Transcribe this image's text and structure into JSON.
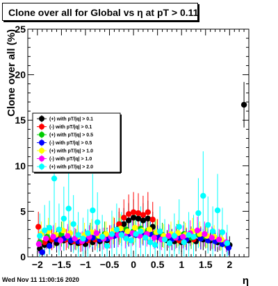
{
  "header": {
    "title": "Clone  over all for Global vs   η at pT > 0.11"
  },
  "footer": {
    "timestamp": "Wed Nov 11 11:00:16 2020"
  },
  "chart_data": {
    "type": "scatter",
    "title": "Clone  over all for Global vs   η at pT > 0.11",
    "xlabel": "η",
    "ylabel": "Clone  over all (%)",
    "xlim": [
      -2.2,
      2.4
    ],
    "ylim": [
      0,
      25
    ],
    "x_ticks": [
      -2,
      -1.5,
      -1,
      -0.5,
      0,
      0.5,
      1,
      1.5,
      2
    ],
    "x_tick_labels": [
      "−2",
      "−1.5",
      "−1",
      "−0.5",
      "0",
      "0.5",
      "1",
      "1.5",
      "2"
    ],
    "y_ticks": [
      0,
      5,
      10,
      15,
      20,
      25
    ],
    "grid": false,
    "legend_position": "center-left",
    "series": [
      {
        "name": "(+) with pT/|q| > 0.1",
        "color": "#000000",
        "points": [
          [
            -1.95,
            0.9
          ],
          [
            -1.85,
            1.3
          ],
          [
            -1.75,
            1.6
          ],
          [
            -1.6,
            1.5
          ],
          [
            -1.45,
            1.8
          ],
          [
            -1.3,
            1.6
          ],
          [
            -1.15,
            1.5
          ],
          [
            -1.0,
            1.4
          ],
          [
            -0.85,
            1.6
          ],
          [
            -0.7,
            1.7
          ],
          [
            -0.55,
            1.8
          ],
          [
            -0.4,
            2.3
          ],
          [
            -0.3,
            3.3
          ],
          [
            -0.2,
            3.6
          ],
          [
            -0.1,
            4.0
          ],
          [
            0.0,
            4.3
          ],
          [
            0.1,
            4.2
          ],
          [
            0.2,
            4.0
          ],
          [
            0.3,
            4.2
          ],
          [
            0.4,
            3.3
          ],
          [
            0.55,
            2.1
          ],
          [
            0.7,
            1.8
          ],
          [
            0.85,
            1.7
          ],
          [
            1.0,
            1.6
          ],
          [
            1.15,
            1.8
          ],
          [
            1.3,
            1.7
          ],
          [
            1.45,
            1.9
          ],
          [
            1.6,
            1.8
          ],
          [
            1.75,
            1.6
          ],
          [
            1.85,
            1.4
          ],
          [
            2.0,
            1.3
          ],
          [
            2.3,
            16.7
          ]
        ]
      },
      {
        "name": "(-) with pT/|q| > 0.1",
        "color": "#ff0000",
        "points": [
          [
            -1.98,
            3.3
          ],
          [
            -1.85,
            1.6
          ],
          [
            -1.7,
            1.9
          ],
          [
            -1.55,
            2.1
          ],
          [
            -1.4,
            1.9
          ],
          [
            -1.25,
            1.7
          ],
          [
            -1.1,
            1.6
          ],
          [
            -0.95,
            1.8
          ],
          [
            -0.8,
            1.9
          ],
          [
            -0.65,
            2.0
          ],
          [
            -0.5,
            2.2
          ],
          [
            -0.4,
            2.8
          ],
          [
            -0.3,
            3.6
          ],
          [
            -0.2,
            4.3
          ],
          [
            -0.1,
            4.7
          ],
          [
            0.0,
            4.9
          ],
          [
            0.1,
            4.8
          ],
          [
            0.2,
            4.6
          ],
          [
            0.3,
            4.9
          ],
          [
            0.4,
            4.1
          ],
          [
            0.5,
            2.7
          ],
          [
            0.65,
            2.1
          ],
          [
            0.8,
            1.9
          ],
          [
            0.95,
            1.8
          ],
          [
            1.1,
            2.0
          ],
          [
            1.25,
            1.9
          ],
          [
            1.4,
            2.1
          ],
          [
            1.55,
            2.0
          ],
          [
            1.7,
            1.8
          ],
          [
            1.85,
            1.6
          ],
          [
            1.95,
            1.2
          ]
        ]
      },
      {
        "name": "(+) with pT/|q| > 0.5",
        "color": "#00cc00",
        "points": [
          [
            -1.95,
            1.6
          ],
          [
            -1.8,
            2.2
          ],
          [
            -1.65,
            2.3
          ],
          [
            -1.5,
            2.5
          ],
          [
            -1.35,
            2.1
          ],
          [
            -1.2,
            1.9
          ],
          [
            -1.05,
            2.0
          ],
          [
            -0.9,
            2.4
          ],
          [
            -0.75,
            2.2
          ],
          [
            -0.6,
            2.5
          ],
          [
            -0.45,
            2.3
          ],
          [
            -0.3,
            2.8
          ],
          [
            -0.15,
            3.0
          ],
          [
            0.0,
            2.8
          ],
          [
            0.15,
            3.1
          ],
          [
            0.3,
            2.9
          ],
          [
            0.45,
            2.6
          ],
          [
            0.6,
            2.4
          ],
          [
            0.75,
            2.2
          ],
          [
            0.9,
            2.3
          ],
          [
            1.05,
            2.5
          ],
          [
            1.2,
            2.1
          ],
          [
            1.35,
            2.4
          ],
          [
            1.5,
            2.2
          ],
          [
            1.65,
            2.0
          ],
          [
            1.8,
            1.8
          ],
          [
            1.95,
            1.3
          ]
        ]
      },
      {
        "name": "(-) with pT/|q| > 0.5",
        "color": "#0000ff",
        "points": [
          [
            -1.9,
            0.5
          ],
          [
            -1.75,
            1.2
          ],
          [
            -1.6,
            1.9
          ],
          [
            -1.45,
            2.0
          ],
          [
            -1.3,
            1.8
          ],
          [
            -1.15,
            1.7
          ],
          [
            -1.0,
            1.9
          ],
          [
            -0.85,
            2.1
          ],
          [
            -0.7,
            1.9
          ],
          [
            -0.55,
            2.0
          ],
          [
            -0.4,
            2.3
          ],
          [
            -0.25,
            2.6
          ],
          [
            -0.1,
            2.5
          ],
          [
            0.05,
            2.4
          ],
          [
            0.2,
            2.7
          ],
          [
            0.35,
            2.5
          ],
          [
            0.5,
            2.2
          ],
          [
            0.65,
            2.0
          ],
          [
            0.8,
            1.9
          ],
          [
            0.95,
            2.1
          ],
          [
            1.1,
            1.9
          ],
          [
            1.25,
            2.2
          ],
          [
            1.4,
            2.0
          ],
          [
            1.55,
            1.8
          ],
          [
            1.7,
            1.7
          ],
          [
            1.85,
            1.4
          ],
          [
            1.98,
            1.0
          ]
        ]
      },
      {
        "name": "(+) with pT/|q| > 1.0",
        "color": "#ffff00",
        "points": [
          [
            -1.92,
            2.5
          ],
          [
            -1.77,
            2.8
          ],
          [
            -1.62,
            2.4
          ],
          [
            -1.47,
            2.9
          ],
          [
            -1.32,
            2.6
          ],
          [
            -1.17,
            2.2
          ],
          [
            -1.02,
            2.4
          ],
          [
            -0.87,
            2.7
          ],
          [
            -0.72,
            2.3
          ],
          [
            -0.57,
            2.5
          ],
          [
            -0.42,
            2.9
          ],
          [
            -0.27,
            3.1
          ],
          [
            -0.12,
            2.8
          ],
          [
            0.03,
            3.2
          ],
          [
            0.18,
            2.9
          ],
          [
            0.33,
            3.0
          ],
          [
            0.48,
            2.7
          ],
          [
            0.63,
            2.3
          ],
          [
            0.78,
            2.5
          ],
          [
            0.93,
            2.6
          ],
          [
            1.08,
            2.4
          ],
          [
            1.23,
            2.8
          ],
          [
            1.38,
            2.5
          ],
          [
            1.53,
            2.3
          ],
          [
            1.68,
            2.2
          ],
          [
            1.83,
            1.9
          ]
        ]
      },
      {
        "name": "(-) with pT/|q| > 1.0",
        "color": "#ff00ff",
        "points": [
          [
            -1.97,
            1.4
          ],
          [
            -1.82,
            2.0
          ],
          [
            -1.67,
            2.2
          ],
          [
            -1.52,
            1.8
          ],
          [
            -1.37,
            2.3
          ],
          [
            -1.22,
            2.0
          ],
          [
            -1.07,
            1.7
          ],
          [
            -0.92,
            2.2
          ],
          [
            -0.77,
            2.6
          ],
          [
            -0.62,
            2.0
          ],
          [
            -0.47,
            2.2
          ],
          [
            -0.32,
            2.4
          ],
          [
            -0.17,
            2.2
          ],
          [
            -0.02,
            2.6
          ],
          [
            0.13,
            2.3
          ],
          [
            0.28,
            2.5
          ],
          [
            0.43,
            2.1
          ],
          [
            0.58,
            1.9
          ],
          [
            0.73,
            2.3
          ],
          [
            0.88,
            2.1
          ],
          [
            1.03,
            2.2
          ],
          [
            1.18,
            2.6
          ],
          [
            1.33,
            2.9
          ],
          [
            1.48,
            2.5
          ],
          [
            1.63,
            2.1
          ],
          [
            1.78,
            1.9
          ],
          [
            1.93,
            1.6
          ]
        ]
      },
      {
        "name": "(+) with pT/|q| > 2.0",
        "color": "#00ffff",
        "points": [
          [
            -1.95,
            2.3
          ],
          [
            -1.85,
            2.9
          ],
          [
            -1.75,
            3.2
          ],
          [
            -1.65,
            8.6
          ],
          [
            -1.55,
            3.0
          ],
          [
            -1.45,
            4.2
          ],
          [
            -1.35,
            5.3
          ],
          [
            -1.25,
            3.6
          ],
          [
            -1.15,
            2.4
          ],
          [
            -1.05,
            2.0
          ],
          [
            -0.95,
            2.6
          ],
          [
            -0.85,
            5.1
          ],
          [
            -0.75,
            3.8
          ],
          [
            -0.65,
            2.2
          ],
          [
            -0.55,
            1.2
          ],
          [
            -0.45,
            2.5
          ],
          [
            -0.35,
            3.0
          ],
          [
            -0.25,
            2.4
          ],
          [
            -0.15,
            2.0
          ],
          [
            -0.05,
            1.8
          ],
          [
            0.05,
            2.5
          ],
          [
            0.15,
            2.8
          ],
          [
            0.25,
            2.1
          ],
          [
            0.35,
            1.6
          ],
          [
            0.45,
            1.3
          ],
          [
            0.55,
            2.8
          ],
          [
            0.65,
            1.9
          ],
          [
            0.75,
            1.5
          ],
          [
            0.85,
            2.3
          ],
          [
            0.95,
            3.3
          ],
          [
            1.05,
            1.6
          ],
          [
            1.15,
            2.4
          ],
          [
            1.25,
            2.2
          ],
          [
            1.35,
            4.8
          ],
          [
            1.45,
            6.7
          ],
          [
            1.55,
            3.5
          ],
          [
            1.65,
            2.8
          ],
          [
            1.75,
            5.1
          ],
          [
            1.85,
            2.7
          ],
          [
            1.95,
            1.5
          ]
        ]
      }
    ]
  }
}
